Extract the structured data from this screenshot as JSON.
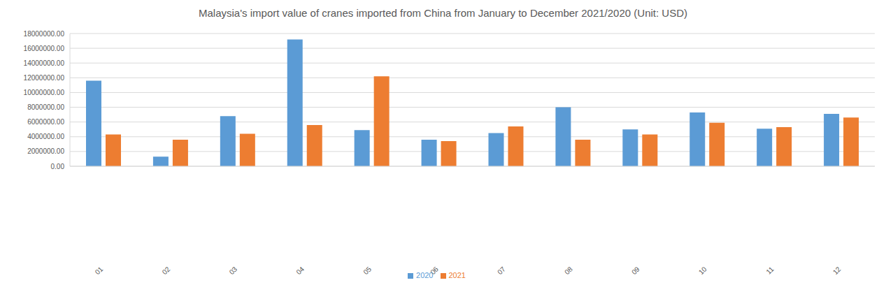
{
  "chart_data": {
    "type": "bar",
    "title": "Malaysia's import value of cranes imported from China from January to December 2021/2020 (Unit: USD)",
    "categories": [
      "01",
      "02",
      "03",
      "04",
      "05",
      "06",
      "07",
      "08",
      "09",
      "10",
      "11",
      "12"
    ],
    "series": [
      {
        "name": "2020",
        "color": "#5b9bd5",
        "values": [
          11600000,
          1300000,
          6800000,
          17200000,
          4900000,
          3600000,
          4500000,
          8000000,
          5000000,
          7300000,
          5100000,
          7100000
        ]
      },
      {
        "name": "2021",
        "color": "#ed7d31",
        "values": [
          4300000,
          3600000,
          4400000,
          5600000,
          12200000,
          3400000,
          5400000,
          3600000,
          4300000,
          5900000,
          5300000,
          6600000
        ]
      }
    ],
    "ylim": [
      0,
      18000000
    ],
    "yticks": [
      {
        "value": 0,
        "label": "0.00"
      },
      {
        "value": 2000000,
        "label": "2000000.00"
      },
      {
        "value": 4000000,
        "label": "4000000.00"
      },
      {
        "value": 6000000,
        "label": "6000000.00"
      },
      {
        "value": 8000000,
        "label": "8000000.00"
      },
      {
        "value": 10000000,
        "label": "10000000.00"
      },
      {
        "value": 12000000,
        "label": "12000000.00"
      },
      {
        "value": 14000000,
        "label": "14000000.00"
      },
      {
        "value": 16000000,
        "label": "16000000.00"
      },
      {
        "value": 18000000,
        "label": "18000000.00"
      }
    ],
    "grid": true,
    "legend": "bottom"
  }
}
